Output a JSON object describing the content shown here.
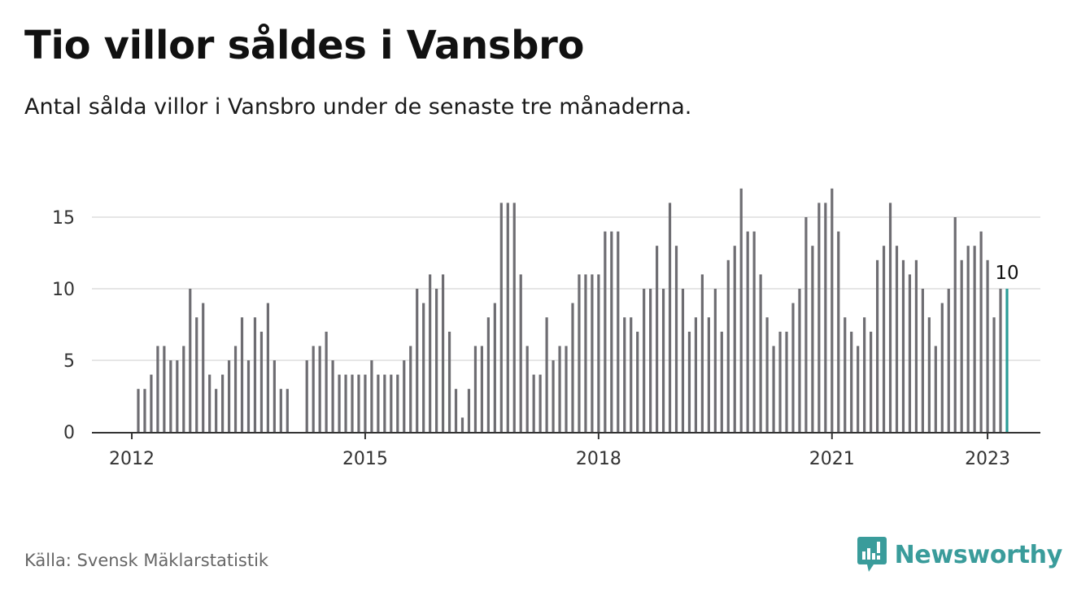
{
  "title": "Tio villor såldes i Vansbro",
  "subtitle": "Antal sålda villor i Vansbro under de senaste tre månaderna.",
  "source": "Källa: Svensk Mäklarstatistik",
  "brand": {
    "name": "Newsworthy",
    "logo_icon": "newsworthy-chart-bubble-icon",
    "color": "#3a9c9b"
  },
  "colors": {
    "bar": "#6e6d72",
    "highlight": "#2a9d98",
    "grid": "#dddddd",
    "axis": "#333333"
  },
  "chart_data": {
    "type": "bar",
    "title": "Tio villor såldes i Vansbro",
    "subtitle": "Antal sålda villor i Vansbro under de senaste tre månaderna.",
    "xlabel": "",
    "ylabel": "",
    "ylim": [
      0,
      17
    ],
    "yticks": [
      0,
      5,
      10,
      15
    ],
    "x_start": "2011-10",
    "x_tick_labels": [
      {
        "label": "2012",
        "month": "2012-01"
      },
      {
        "label": "2015",
        "month": "2015-01"
      },
      {
        "label": "2018",
        "month": "2018-01"
      },
      {
        "label": "2021",
        "month": "2021-01"
      },
      {
        "label": "2023",
        "month": "2023-01"
      }
    ],
    "grid": true,
    "legend": "none",
    "highlight_last": true,
    "highlight_label": "10",
    "values": [
      null,
      null,
      null,
      null,
      3,
      3,
      4,
      6,
      6,
      5,
      5,
      6,
      10,
      8,
      9,
      4,
      3,
      4,
      5,
      6,
      8,
      5,
      8,
      7,
      9,
      5,
      3,
      3,
      null,
      null,
      5,
      6,
      6,
      7,
      5,
      4,
      4,
      4,
      4,
      4,
      5,
      4,
      4,
      4,
      4,
      5,
      6,
      10,
      9,
      11,
      10,
      11,
      7,
      3,
      1,
      3,
      6,
      6,
      8,
      9,
      16,
      16,
      16,
      11,
      6,
      4,
      4,
      8,
      5,
      6,
      6,
      9,
      11,
      11,
      11,
      11,
      14,
      14,
      14,
      8,
      8,
      7,
      10,
      10,
      13,
      10,
      16,
      13,
      10,
      7,
      8,
      11,
      8,
      10,
      7,
      12,
      13,
      17,
      14,
      14,
      11,
      8,
      6,
      7,
      7,
      9,
      10,
      15,
      13,
      16,
      16,
      17,
      14,
      8,
      7,
      6,
      8,
      7,
      12,
      13,
      16,
      13,
      12,
      11,
      12,
      10,
      8,
      6,
      9,
      10,
      15,
      12,
      13,
      13,
      14,
      12,
      8,
      10,
      10
    ]
  }
}
